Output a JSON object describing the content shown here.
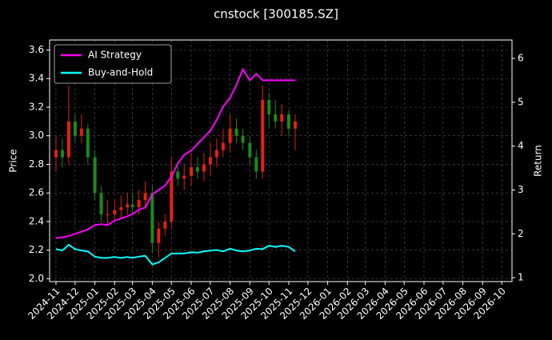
{
  "chart_data": {
    "type": "candlestick",
    "title": "cnstock [300185.SZ]",
    "ylabel": "Price",
    "y2label": "Return",
    "x": [
      "2024-11-01",
      "2024-11-11",
      "2024-11-21",
      "2024-12-01",
      "2024-12-11",
      "2024-12-21",
      "2025-01-01",
      "2025-01-11",
      "2025-01-21",
      "2025-02-01",
      "2025-02-11",
      "2025-02-21",
      "2025-03-01",
      "2025-03-11",
      "2025-03-21",
      "2025-04-01",
      "2025-04-11",
      "2025-04-21",
      "2025-05-01",
      "2025-05-11",
      "2025-05-21",
      "2025-06-01",
      "2025-06-11",
      "2025-06-21",
      "2025-07-01",
      "2025-07-11",
      "2025-07-21",
      "2025-08-01",
      "2025-08-11",
      "2025-08-21",
      "2025-09-01",
      "2025-09-11",
      "2025-09-21",
      "2025-10-01",
      "2025-10-11",
      "2025-10-21",
      "2025-11-01",
      "2025-11-11"
    ],
    "open": [
      2.85,
      2.9,
      2.85,
      3.1,
      3.0,
      3.05,
      2.85,
      2.6,
      2.45,
      2.45,
      2.48,
      2.5,
      2.52,
      2.5,
      2.55,
      2.6,
      2.25,
      2.35,
      2.4,
      2.75,
      2.7,
      2.72,
      2.78,
      2.75,
      2.8,
      2.85,
      2.9,
      2.95,
      3.05,
      3.0,
      2.95,
      2.85,
      2.75,
      3.25,
      3.15,
      3.1,
      3.15,
      3.05
    ],
    "high": [
      3.0,
      2.98,
      3.35,
      3.15,
      3.15,
      3.08,
      2.9,
      2.65,
      2.55,
      2.55,
      2.58,
      2.6,
      2.6,
      2.62,
      2.68,
      2.65,
      2.4,
      2.45,
      2.85,
      2.82,
      2.8,
      2.88,
      2.85,
      2.88,
      2.95,
      2.98,
      3.05,
      3.15,
      3.12,
      3.05,
      3.0,
      2.9,
      3.35,
      3.3,
      3.25,
      3.22,
      3.18,
      3.15
    ],
    "low": [
      2.75,
      2.78,
      2.8,
      2.95,
      2.95,
      2.8,
      2.55,
      2.4,
      2.38,
      2.4,
      2.42,
      2.45,
      2.45,
      2.45,
      2.5,
      2.18,
      2.15,
      2.3,
      2.35,
      2.65,
      2.62,
      2.65,
      2.7,
      2.68,
      2.72,
      2.78,
      2.85,
      2.88,
      2.95,
      2.9,
      2.8,
      2.7,
      2.7,
      3.05,
      3.05,
      3.0,
      3.0,
      2.9
    ],
    "close": [
      2.9,
      2.85,
      3.1,
      3.0,
      3.05,
      2.85,
      2.6,
      2.45,
      2.45,
      2.48,
      2.5,
      2.52,
      2.5,
      2.55,
      2.6,
      2.25,
      2.35,
      2.4,
      2.75,
      2.7,
      2.72,
      2.78,
      2.75,
      2.8,
      2.85,
      2.9,
      2.95,
      3.05,
      3.0,
      2.95,
      2.85,
      2.75,
      3.25,
      3.15,
      3.1,
      3.15,
      3.05,
      3.1
    ],
    "up_color": "#e8200c",
    "down_color": "#1a8a1a",
    "series": [
      {
        "name": "AI Strategy",
        "color": "#ff00ff",
        "axis": "y2",
        "values": [
          1.9,
          1.92,
          1.95,
          2.0,
          2.05,
          2.1,
          2.2,
          2.22,
          2.2,
          2.3,
          2.35,
          2.4,
          2.45,
          2.55,
          2.6,
          2.9,
          3.0,
          3.1,
          3.3,
          3.6,
          3.8,
          3.9,
          4.05,
          4.2,
          4.35,
          4.6,
          4.9,
          5.1,
          5.4,
          5.75,
          5.5,
          5.65,
          5.5,
          5.5,
          5.5,
          5.5,
          5.5,
          5.5
        ]
      },
      {
        "name": "Buy-and-Hold",
        "color": "#00ffff",
        "axis": "y2",
        "values": [
          1.65,
          1.62,
          1.75,
          1.65,
          1.62,
          1.6,
          1.48,
          1.45,
          1.45,
          1.47,
          1.45,
          1.47,
          1.45,
          1.48,
          1.5,
          1.3,
          1.35,
          1.45,
          1.55,
          1.55,
          1.55,
          1.58,
          1.57,
          1.6,
          1.62,
          1.63,
          1.6,
          1.66,
          1.62,
          1.6,
          1.62,
          1.66,
          1.65,
          1.73,
          1.7,
          1.73,
          1.7,
          1.6
        ]
      }
    ],
    "xlim": [
      "2024-10-22",
      "2026-10-17"
    ],
    "xticks": [
      "2024-11",
      "2024-12",
      "2025-01",
      "2025-02",
      "2025-03",
      "2025-04",
      "2025-05",
      "2025-06",
      "2025-07",
      "2025-08",
      "2025-09",
      "2025-10",
      "2025-11",
      "2025-12",
      "2026-01",
      "2026-02",
      "2026-03",
      "2026-04",
      "2026-05",
      "2026-06",
      "2026-07",
      "2026-08",
      "2026-09",
      "2026-10"
    ],
    "ylim": [
      1.98,
      3.67
    ],
    "yticks": [
      {
        "value": 2,
        "label": "2.0"
      },
      2.2,
      2.4,
      2.6,
      2.8,
      {
        "value": 3,
        "label": "3.0"
      },
      3.2,
      3.4,
      3.6
    ],
    "y2lim": [
      0.91,
      6.42
    ],
    "y2ticks": [
      1,
      2,
      3,
      4,
      5,
      6
    ],
    "grid": true,
    "legend": "upper left"
  }
}
